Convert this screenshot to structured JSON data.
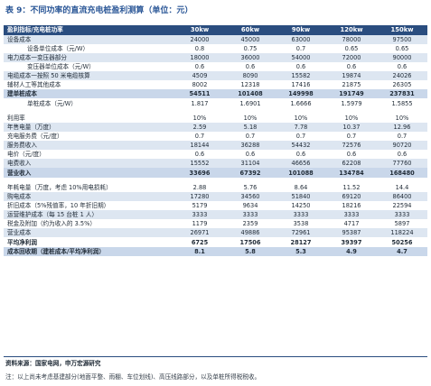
{
  "title": "表 9：不同功率的直流充电桩盈利测算（单位：元）",
  "header": [
    "盈利指标/充电桩功率",
    "30kw",
    "60kw",
    "90kw",
    "120kw",
    "150kw"
  ],
  "rows": [
    {
      "style": "alt",
      "indent": false,
      "cells": [
        "设备成本",
        "24000",
        "45000",
        "63000",
        "78000",
        "97500"
      ]
    },
    {
      "style": "",
      "indent": true,
      "cells": [
        "设备单位成本（元/W）",
        "0.8",
        "0.75",
        "0.7",
        "0.65",
        "0.65"
      ]
    },
    {
      "style": "alt",
      "indent": false,
      "cells": [
        "电力成本一变压器部分",
        "18000",
        "36000",
        "54000",
        "72000",
        "90000"
      ]
    },
    {
      "style": "",
      "indent": true,
      "cells": [
        "变压器单位成本（元/W）",
        "0.6",
        "0.6",
        "0.6",
        "0.6",
        "0.6"
      ]
    },
    {
      "style": "alt",
      "indent": false,
      "cells": [
        "电缆成本一按照 50 米电缆核算",
        "4509",
        "8090",
        "15582",
        "19874",
        "24026"
      ]
    },
    {
      "style": "",
      "indent": false,
      "cells": [
        "辅材人工等其他成本",
        "8002",
        "12318",
        "17416",
        "21875",
        "26305"
      ]
    },
    {
      "style": "sub",
      "indent": false,
      "cells": [
        "建单桩成本",
        "54511",
        "101408",
        "149998",
        "191749",
        "237831"
      ]
    },
    {
      "style": "",
      "indent": true,
      "cells": [
        "单桩成本（元/W）",
        "1.817",
        "1.6901",
        "1.6666",
        "1.5979",
        "1.5855"
      ]
    },
    {
      "style": "spacer",
      "indent": false,
      "cells": [
        "",
        "",
        "",
        "",
        "",
        ""
      ]
    },
    {
      "style": "",
      "indent": false,
      "cells": [
        "利用率",
        "10%",
        "10%",
        "10%",
        "10%",
        "10%"
      ]
    },
    {
      "style": "alt",
      "indent": false,
      "cells": [
        "年售电量（万度）",
        "2.59",
        "5.18",
        "7.78",
        "10.37",
        "12.96"
      ]
    },
    {
      "style": "",
      "indent": false,
      "cells": [
        "充电服务费（元/度）",
        "0.7",
        "0.7",
        "0.7",
        "0.7",
        "0.7"
      ]
    },
    {
      "style": "alt",
      "indent": false,
      "cells": [
        "服务费收入",
        "18144",
        "36288",
        "54432",
        "72576",
        "90720"
      ]
    },
    {
      "style": "",
      "indent": false,
      "cells": [
        "电价（元/度）",
        "0.6",
        "0.6",
        "0.6",
        "0.6",
        "0.6"
      ]
    },
    {
      "style": "alt",
      "indent": false,
      "cells": [
        "电费收入",
        "15552",
        "31104",
        "46656",
        "62208",
        "77760"
      ]
    },
    {
      "style": "sub",
      "indent": false,
      "cells": [
        "营业收入",
        "33696",
        "67392",
        "101088",
        "134784",
        "168480"
      ]
    },
    {
      "style": "spacer",
      "indent": false,
      "cells": [
        "",
        "",
        "",
        "",
        "",
        ""
      ]
    },
    {
      "style": "",
      "indent": false,
      "cells": [
        "年耗电量（万度，考虑 10%用电损耗）",
        "2.88",
        "5.76",
        "8.64",
        "11.52",
        "14.4"
      ]
    },
    {
      "style": "alt",
      "indent": false,
      "cells": [
        "购电成本",
        "17280",
        "34560",
        "51840",
        "69120",
        "86400"
      ]
    },
    {
      "style": "",
      "indent": false,
      "cells": [
        "折旧成本（5%残值率，10 年折旧期）",
        "5179",
        "9634",
        "14250",
        "18216",
        "22594"
      ]
    },
    {
      "style": "alt",
      "indent": false,
      "cells": [
        "运营维护成本（每 15 台桩 1 人）",
        "3333",
        "3333",
        "3333",
        "3333",
        "3333"
      ]
    },
    {
      "style": "",
      "indent": false,
      "cells": [
        "税金及附加（约为收入的 3.5%）",
        "1179",
        "2359",
        "3538",
        "4717",
        "5897"
      ]
    },
    {
      "style": "alt",
      "indent": false,
      "cells": [
        "营业成本",
        "26971",
        "49886",
        "72961",
        "95387",
        "118224"
      ]
    },
    {
      "style": "bold",
      "indent": false,
      "cells": [
        "平均净利润",
        "6725",
        "17506",
        "28127",
        "39397",
        "50256"
      ]
    },
    {
      "style": "sub",
      "indent": false,
      "cells": [
        "成本回收期（建桩成本/平均净利润）",
        "8.1",
        "5.8",
        "5.3",
        "4.9",
        "4.7"
      ]
    }
  ],
  "source": "资料来源：国家电网，申万宏源研究",
  "note": "注：以上尚未考虑基建部分(地面平整、雨棚、车位划线)、高压线路部分，以及单桩所得税税收。"
}
